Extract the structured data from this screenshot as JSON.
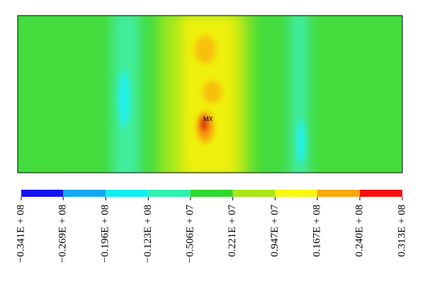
{
  "chart_data": {
    "type": "contour",
    "annotation": "MX",
    "colorbar": {
      "colors": [
        "#1414f0",
        "#14a8f0",
        "#10f0f0",
        "#30f0b0",
        "#30d830",
        "#a8e818",
        "#f8f810",
        "#f8a810",
        "#f81010"
      ],
      "ticks": [
        {
          "value": -34100000,
          "label": "−0.341E + 08"
        },
        {
          "value": -26900000,
          "label": "−0.269E + 08"
        },
        {
          "value": -19600000,
          "label": "−0.196E + 08"
        },
        {
          "value": -12300000,
          "label": "−0.123E + 08"
        },
        {
          "value": -5060000,
          "label": "−0.506E + 07"
        },
        {
          "value": 2210000,
          "label": "0.221E + 07"
        },
        {
          "value": 9470000,
          "label": "0.947E + 07"
        },
        {
          "value": 16700000,
          "label": "0.167E + 08"
        },
        {
          "value": 24000000,
          "label": "0.240E + 08"
        },
        {
          "value": 31300000,
          "label": "0.313E + 08"
        }
      ]
    }
  }
}
